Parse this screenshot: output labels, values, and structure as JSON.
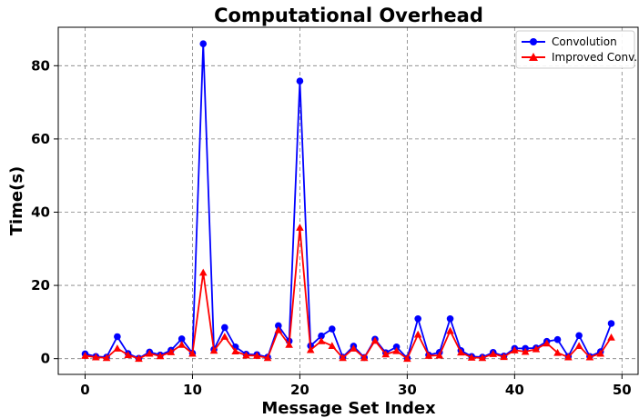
{
  "chart_data": {
    "type": "line",
    "title": "Computational Overhead",
    "xlabel": "Message Set Index",
    "ylabel": "Time(s)",
    "xlim": [
      -2.5,
      51.5
    ],
    "ylim": [
      -4.3,
      90.5
    ],
    "xticks": [
      0,
      10,
      20,
      30,
      40,
      50
    ],
    "yticks": [
      0,
      20,
      40,
      60,
      80
    ],
    "grid": true,
    "legend_position": "top-right",
    "x": [
      0,
      1,
      2,
      3,
      4,
      5,
      6,
      7,
      8,
      9,
      10,
      11,
      12,
      13,
      14,
      15,
      16,
      17,
      18,
      19,
      20,
      21,
      22,
      23,
      24,
      25,
      26,
      27,
      28,
      29,
      30,
      31,
      32,
      33,
      34,
      35,
      36,
      37,
      38,
      39,
      40,
      41,
      42,
      43,
      44,
      45,
      46,
      47,
      48,
      49
    ],
    "series": [
      {
        "name": "Convolution",
        "color": "#0000ff",
        "marker": "circle",
        "values": [
          1.3,
          0.6,
          0.4,
          6.0,
          1.4,
          0.1,
          1.8,
          1.0,
          2.3,
          5.4,
          1.5,
          86.0,
          2.5,
          8.5,
          3.2,
          1.2,
          1.1,
          0.4,
          9.0,
          4.8,
          75.8,
          3.5,
          6.2,
          8.1,
          0.4,
          3.4,
          0.3,
          5.3,
          1.6,
          3.2,
          0.1,
          10.9,
          1.0,
          1.7,
          10.9,
          2.2,
          0.6,
          0.4,
          1.7,
          0.7,
          2.8,
          2.8,
          2.9,
          4.7,
          5.2,
          0.6,
          6.3,
          0.6,
          1.9,
          9.6
        ]
      },
      {
        "name": "Improved Conv.",
        "color": "#ff0000",
        "marker": "triangle",
        "values": [
          0.8,
          0.4,
          0.2,
          2.8,
          1.0,
          0.0,
          1.4,
          0.7,
          1.8,
          3.8,
          1.4,
          23.5,
          2.2,
          6.0,
          2.0,
          0.9,
          0.8,
          0.2,
          7.8,
          3.8,
          35.8,
          2.4,
          4.8,
          3.5,
          0.2,
          2.8,
          0.2,
          4.9,
          1.2,
          2.1,
          0.0,
          6.6,
          0.8,
          0.9,
          7.6,
          1.7,
          0.3,
          0.2,
          1.3,
          0.5,
          2.3,
          1.9,
          2.6,
          4.2,
          1.6,
          0.4,
          3.5,
          0.4,
          1.4,
          5.8
        ]
      }
    ]
  }
}
